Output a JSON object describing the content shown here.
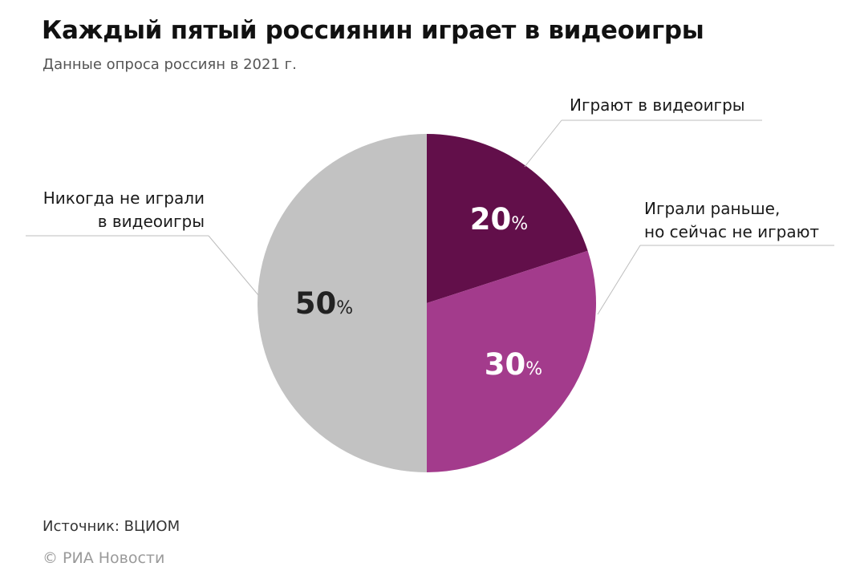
{
  "title": "Каждый пятый россиянин играет в видеоигры",
  "subtitle": "Данные опроса россиян в 2021 г.",
  "source": "Источник: ВЦИОМ",
  "copyright": "© РИА Новости",
  "chart_data": {
    "type": "pie",
    "title": "Каждый пятый россиянин играет в видеоигры",
    "subtitle": "Данные опроса россиян в 2021 г.",
    "value_suffix": "%",
    "slices": [
      {
        "label": "Играют в видеоигры",
        "value": 20,
        "color": "#620f4a",
        "text_color": "#ffffff"
      },
      {
        "label": "Играли раньше, но сейчас не играют",
        "value": 30,
        "color": "#a33b8c",
        "text_color": "#ffffff"
      },
      {
        "label": "Никогда не играли в видеоигры",
        "value": 50,
        "color": "#c2c2c2",
        "text_color": "#222222"
      }
    ],
    "labels_multiline": [
      [
        "Играют в видеоигры"
      ],
      [
        "Играли раньше,",
        "но сейчас не играют"
      ],
      [
        "Никогда не играли",
        "в видеоигры"
      ]
    ]
  }
}
